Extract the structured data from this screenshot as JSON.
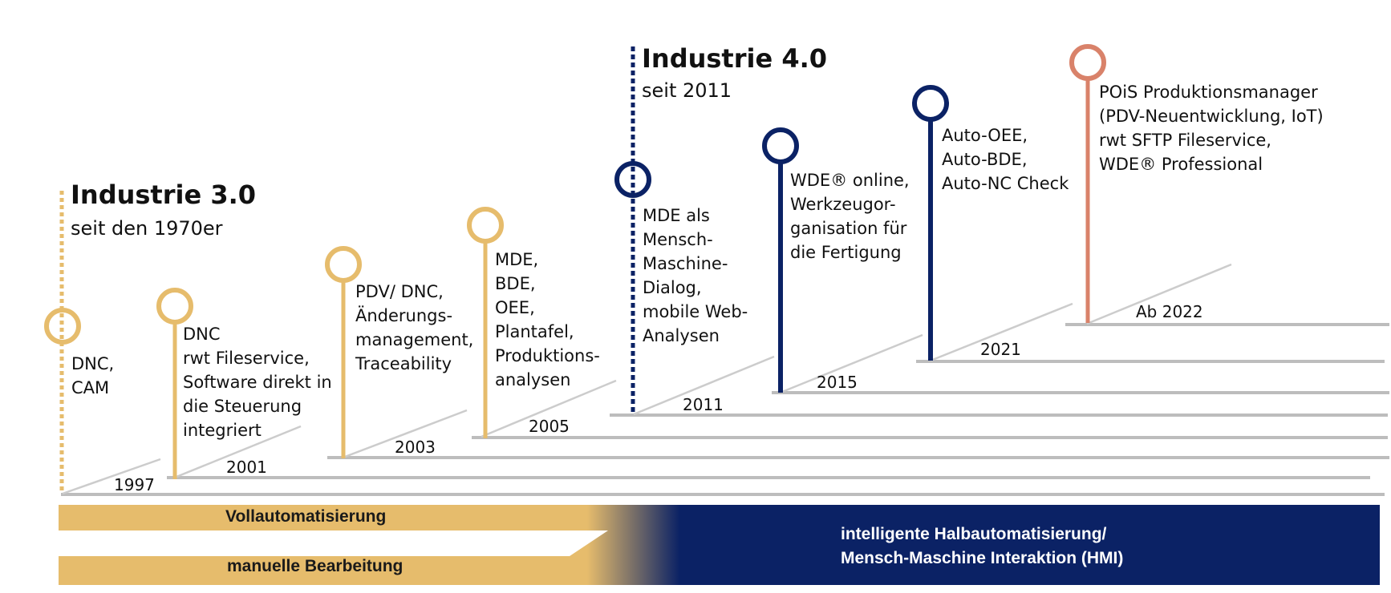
{
  "colors": {
    "gold": "#e6bc6c",
    "navy": "#0b2265",
    "salmon": "#d9826a",
    "step_gray": "#bdbdbd"
  },
  "eras": [
    {
      "title": "Industrie 3.0",
      "subtitle": "seit den 1970er"
    },
    {
      "title": "Industrie 4.0",
      "subtitle": "seit 2011"
    }
  ],
  "milestones": [
    {
      "year": "1997",
      "color": "gold",
      "lines": [
        "DNC,",
        "CAM"
      ]
    },
    {
      "year": "2001",
      "color": "gold",
      "lines": [
        "DNC",
        "rwt Fileservice,",
        "Software direkt in",
        "die Steuerung",
        "integriert"
      ]
    },
    {
      "year": "2003",
      "color": "gold",
      "lines": [
        "PDV/ DNC,",
        "Änderungs-",
        "management,",
        "Traceability"
      ]
    },
    {
      "year": "2005",
      "color": "gold",
      "lines": [
        "MDE,",
        "BDE,",
        "OEE,",
        "Plantafel,",
        "Produktions-",
        "analysen"
      ]
    },
    {
      "year": "2011",
      "color": "navy",
      "lines": [
        "MDE als",
        "Mensch-",
        "Maschine-",
        "Dialog,",
        "mobile Web-",
        "Analysen"
      ]
    },
    {
      "year": "2015",
      "color": "navy",
      "lines": [
        "WDE® online,",
        "Werkzeugor-",
        "ganisation für",
        "die Fertigung"
      ]
    },
    {
      "year": "2021",
      "color": "navy",
      "lines": [
        "Auto-OEE,",
        "Auto-BDE,",
        "Auto-NC Check"
      ]
    },
    {
      "year": "Ab 2022",
      "color": "salmon",
      "lines": [
        "POiS Produktionsmanager",
        "(PDV-Neuentwicklung, IoT)",
        "rwt SFTP Fileservice,",
        "WDE® Professional"
      ]
    }
  ],
  "bands": {
    "top_left": "Vollautomatisierung",
    "bottom_left": "manuelle Bearbeitung",
    "right_line1": "intelligente Halbautomatisierung/",
    "right_line2": "Mensch-Maschine Interaktion (HMI)"
  }
}
